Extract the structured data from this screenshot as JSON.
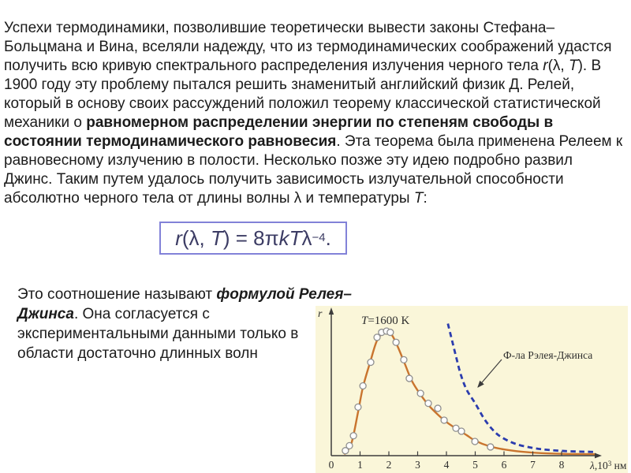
{
  "paragraph1": {
    "a": "Успехи термодинамики, позволившие теоретически вывести законы Стефана–Больцмана и Вина, вселяли надежду, что из термодинамических соображений удастся получить всю кривую спектрального распределения излучения черного тела ",
    "r_italic": "r",
    "b": "(λ, ",
    "t_italic": "T",
    "c": "). В 1900 году эту проблему пытался решить знаменитый английский физик Д. Релей, который в основу своих рассуждений положил теорему классической статистической механики о ",
    "bold": "равномерном распределении энергии по степеням свободы в состоянии термодинамического равновесия",
    "d": ". Эта теорема была применена Релеем к равновесному излучению в полости. Несколько позже эту идею подробно развил Джинс. Таким путем удалось получить зависимость излучательной способности абсолютно черного тела от длины волны λ и температуры ",
    "t2_italic": "T",
    "e": ":"
  },
  "formula": {
    "r": "r",
    "open": "(λ, ",
    "T1": "T",
    "mid": ") = 8π",
    "k": "k",
    "T2": "T",
    "lambda": "λ",
    "sup": "−4",
    "dot": "."
  },
  "paragraph2": {
    "a": "Это соотношение называют ",
    "bold_italic": "формулой Релея–Джинса",
    "b": ". Она согласуется с ",
    "c": "экспериментальными данными только в области достаточно длинных волн"
  },
  "chart_data": {
    "type": "line",
    "ylabel": "r",
    "temperature_label": {
      "t": "T",
      "rest": "=1600 K"
    },
    "annotation": "Ф-ла Рэлея-Джинса",
    "xlabel": {
      "lambda": "λ",
      "comma_ten": ",10",
      "sup": "3",
      "unit": " нм"
    },
    "xticks": [
      "0",
      "1",
      "2",
      "3",
      "4",
      "5",
      "6",
      "7",
      "8"
    ],
    "xlim": [
      0,
      9.6
    ],
    "ylim_relative": [
      0,
      1.1
    ],
    "grid": false,
    "colors": {
      "background": "#faf6d9",
      "curve": "#c9742e",
      "dashed": "#2b3cae",
      "axis": "#3c3c3c",
      "point_stroke": "#8f8f8f",
      "point_fill": "#ffffff"
    },
    "series": [
      {
        "name": "blackbody_curve_T1600K",
        "type": "line",
        "x": [
          0.45,
          0.7,
          0.93,
          1.1,
          1.35,
          1.6,
          1.9,
          2.1,
          2.3,
          2.55,
          2.8,
          3.1,
          3.4,
          3.7,
          4.0,
          4.35,
          4.7,
          5.0,
          5.5,
          6.0,
          6.6,
          7.3,
          8.2,
          9.2
        ],
        "y": [
          0.01,
          0.1,
          0.35,
          0.55,
          0.75,
          0.93,
          1.0,
          0.97,
          0.88,
          0.74,
          0.6,
          0.49,
          0.4,
          0.33,
          0.27,
          0.215,
          0.165,
          0.12,
          0.075,
          0.05,
          0.032,
          0.02,
          0.014,
          0.012
        ]
      },
      {
        "name": "rayleigh_jeans_curve",
        "type": "dashed",
        "x": [
          4.05,
          4.2,
          4.35,
          4.5,
          4.7,
          5.0,
          5.3,
          5.6,
          5.9,
          6.4,
          7.0,
          7.6,
          8.3,
          9.15
        ],
        "y": [
          1.06,
          0.92,
          0.78,
          0.65,
          0.53,
          0.42,
          0.3,
          0.21,
          0.15,
          0.095,
          0.062,
          0.045,
          0.035,
          0.03
        ]
      },
      {
        "name": "experimental_points",
        "type": "scatter",
        "x": [
          0.49,
          0.63,
          0.77,
          0.93,
          1.1,
          1.37,
          1.59,
          1.75,
          1.92,
          2.05,
          2.25,
          2.52,
          2.71,
          3.1,
          3.37,
          3.7,
          3.92,
          4.33,
          4.52,
          4.99,
          5.53
        ],
        "y": [
          0.04,
          0.08,
          0.16,
          0.39,
          0.56,
          0.75,
          0.95,
          0.99,
          1.0,
          0.99,
          0.91,
          0.77,
          0.62,
          0.5,
          0.42,
          0.38,
          0.285,
          0.22,
          0.196,
          0.114,
          0.07
        ]
      }
    ]
  }
}
